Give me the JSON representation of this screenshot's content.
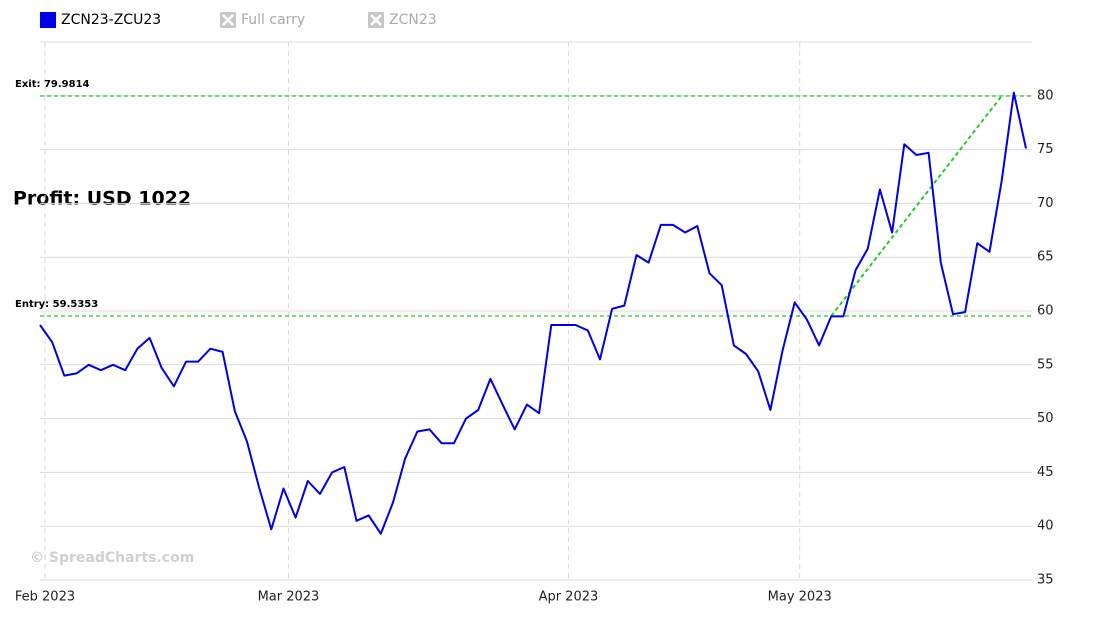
{
  "chart_data": {
    "type": "line",
    "series": [
      {
        "name": "ZCN23-ZCU23",
        "color": "#0000e6",
        "values": [
          58.7,
          57.1,
          54.0,
          54.2,
          55.0,
          54.5,
          55.0,
          54.5,
          56.5,
          57.5,
          54.7,
          53.0,
          55.3,
          55.3,
          56.5,
          56.2,
          50.7,
          47.9,
          43.6,
          39.7,
          43.5,
          40.8,
          44.2,
          43.0,
          45.0,
          45.5,
          40.5,
          41.0,
          39.3,
          42.2,
          46.3,
          48.8,
          49.0,
          47.7,
          47.7,
          50.0,
          50.8,
          53.7,
          51.3,
          49.0,
          51.3,
          50.5,
          58.7,
          58.7,
          58.7,
          58.2,
          55.5,
          60.2,
          60.5,
          65.2,
          64.5,
          68.0,
          68.0,
          67.3,
          67.9,
          63.5,
          62.4,
          56.8,
          56.0,
          54.4,
          50.8,
          56.3,
          60.8,
          59.2,
          56.8,
          59.5,
          59.5,
          63.8,
          65.8,
          71.3,
          67.3,
          75.5,
          74.5,
          74.7,
          64.5,
          59.7,
          59.9,
          66.3,
          65.5,
          72.1,
          80.3,
          75.1
        ]
      }
    ],
    "legend_hidden": [
      "Full carry",
      "ZCN23"
    ],
    "categories": [
      "Feb 2023",
      null,
      null,
      null,
      null,
      null,
      null,
      null,
      null,
      null,
      null,
      null,
      null,
      null,
      null,
      null,
      null,
      null,
      null,
      null,
      "Mar 2023",
      null,
      null,
      null,
      null,
      null,
      null,
      null,
      null,
      null,
      null,
      null,
      null,
      null,
      null,
      null,
      null,
      null,
      null,
      null,
      null,
      null,
      null,
      "Apr 2023",
      null,
      null,
      null,
      null,
      null,
      null,
      null,
      null,
      null,
      null,
      null,
      null,
      null,
      null,
      null,
      null,
      null,
      null,
      "May 2023",
      null,
      null,
      null,
      null,
      null,
      null,
      null,
      null,
      null,
      null,
      null,
      null,
      null,
      null,
      null,
      null,
      null,
      null,
      null
    ],
    "ylim": [
      35,
      85
    ],
    "yticks": [
      35,
      40,
      45,
      50,
      55,
      60,
      65,
      70,
      75,
      80
    ],
    "grid": true,
    "annotations": [
      {
        "label": "Exit: 79.9814",
        "value": 79.9814
      },
      {
        "label": "Entry: 59.5353",
        "value": 59.5353
      }
    ],
    "trade_color": "#22cc22",
    "profit": "Profit: USD 1022",
    "watermark": "© SpreadCharts.com"
  }
}
